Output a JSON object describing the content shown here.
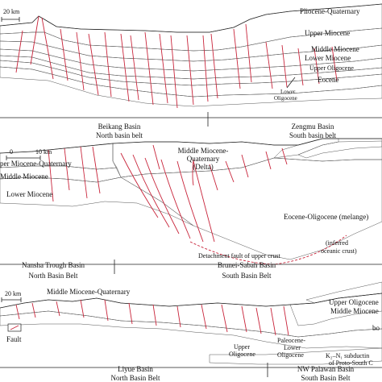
{
  "panel_a": {
    "scale": "20 km",
    "layers": {
      "pliocene_quaternary": "Pliocene-Quaternary",
      "upper_miocene": "Upper Miocene",
      "middle_miocene": "Middle Miocene",
      "lower_miocene": "Lower Miocene",
      "upper_oligocene": "Upper Oligocene",
      "eocene": "Eocene",
      "lower_oligocene_1": "Lower",
      "lower_oligocene_2": "Oligocene"
    },
    "basins": {
      "left_name": "Beikang Basin",
      "left_belt": "North basin belt",
      "right_name": "Zengmu Basin",
      "right_belt": "South basin belt"
    }
  },
  "panel_b": {
    "scale_zero": "0",
    "scale_label": "10 km",
    "layers": {
      "upper_miocene_quaternary": "per Miocene-Quaternary",
      "middle_miocene": "Middle Miocene",
      "lower_miocene": "Lower Miocene",
      "mmq_line1": "Middle Miocene-",
      "mmq_line2": "Quaternary",
      "mmq_line3": "(Delta)",
      "eocene_oligocene": "Eocene-Oligocene (melange)",
      "inferred_1": "(inferred",
      "inferred_2": "oceanic crust)",
      "detachment": "Detachment fault of upper crust"
    },
    "basins": {
      "left_name": "Nansha Trough Basin",
      "left_belt": "North Basin Belt",
      "right_name": "Brunei-Sabah Basin",
      "right_belt": "South Basin Belt"
    }
  },
  "panel_c": {
    "scale": "20 km",
    "layers": {
      "middle_miocene_quaternary": "Middle Miocene-Quaternary",
      "upper_oligocene_right": "Upper Oligocene",
      "middle_miocene_right": "Middle Miocene",
      "bo": "bo",
      "upper_1": "Upper",
      "upper_2": "Oligocene",
      "paleo_1": "Paleocene-",
      "paleo_2": "Lower",
      "paleo_3": "Oligocene",
      "subduction_1": "K₂–N₁ subductin",
      "subduction_2": "of Proto-South C"
    },
    "legend": {
      "fault": "Fault"
    },
    "basins": {
      "left_name": "Liyue Basin",
      "left_belt": "North Basin Belt",
      "right_name": "NW Palawan Basin",
      "right_belt": "South Basin Belt"
    }
  },
  "colors": {
    "pliocene_quaternary": "#f2c9dc",
    "upper_miocene": "#fff9b5",
    "middle_miocene": "#c9e7a6",
    "lower_miocene": "#a9cdef",
    "upper_oligocene": "#f3c06c",
    "eocene": "#e0d2ee",
    "melange": "#d6ebc8",
    "delta": "#fff28c",
    "grey": "#c9c9c9",
    "orange": "#f0aa3a",
    "fault": "#c8243a"
  }
}
